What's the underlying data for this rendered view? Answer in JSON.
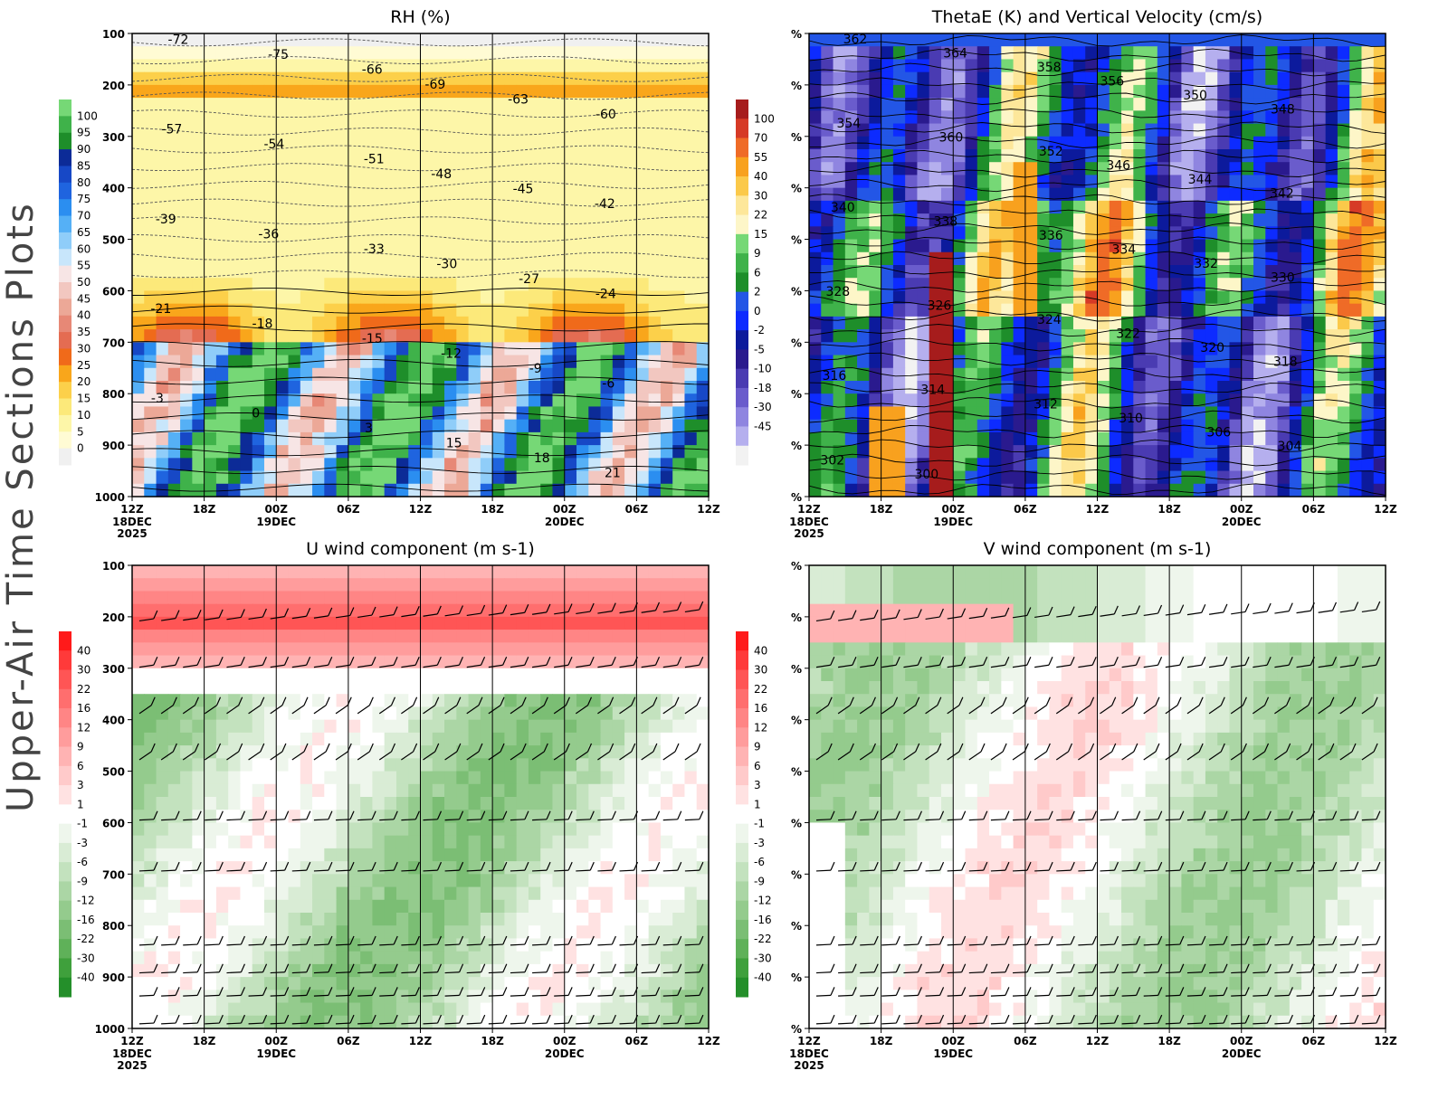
{
  "page": {
    "side_title": "Upper-Air Time Sections Plots"
  },
  "time_axis": {
    "ticks": [
      "12Z",
      "18Z",
      "00Z",
      "06Z",
      "12Z",
      "18Z",
      "00Z",
      "06Z",
      "12Z"
    ],
    "date_labels": [
      {
        "index": 0,
        "lines": [
          "18DEC",
          "2025"
        ]
      },
      {
        "index": 2,
        "lines": [
          "19DEC"
        ]
      },
      {
        "index": 6,
        "lines": [
          "20DEC"
        ]
      }
    ]
  },
  "pressure_levels": [
    "100",
    "200",
    "300",
    "400",
    "500",
    "600",
    "700",
    "800",
    "900",
    "1000"
  ],
  "chart_data": [
    {
      "id": "rh",
      "type": "heatmap",
      "title": "RH (%)",
      "ylabel_ticks": [
        "100",
        "200",
        "300",
        "400",
        "500",
        "600",
        "700",
        "800",
        "900",
        "1000"
      ],
      "y_range": [
        1000,
        100
      ],
      "colorbar": {
        "labels": [
          "100",
          "95",
          "90",
          "85",
          "80",
          "75",
          "70",
          "65",
          "60",
          "55",
          "50",
          "45",
          "40",
          "35",
          "30",
          "25",
          "20",
          "15",
          "10",
          "5",
          "0"
        ],
        "colors": [
          "#76d876",
          "#3fb24a",
          "#1e8e2a",
          "#0c2b97",
          "#1748c6",
          "#1f64df",
          "#2b8ef0",
          "#55b0f6",
          "#8fcdf9",
          "#c8e6fb",
          "#f7e5e5",
          "#f2c7c0",
          "#eca897",
          "#e78876",
          "#e46c52",
          "#f06a1a",
          "#f9a61b",
          "#fcd04a",
          "#fce97a",
          "#fdf6a8",
          "#fffbd4",
          "#f0f0f0"
        ]
      },
      "contour_labels": [
        "-72",
        "-75",
        "-66",
        "-69",
        "-63",
        "-60",
        "-57",
        "-54",
        "-51",
        "-48",
        "-45",
        "-42",
        "-39",
        "-36",
        "-33",
        "-30",
        "-27",
        "-24",
        "-21",
        "-18",
        "-15",
        "-12",
        "-9",
        "-6",
        "-3",
        "0",
        "3",
        "15",
        "18",
        "21"
      ]
    },
    {
      "id": "thetae",
      "type": "heatmap",
      "title": "ThetaE (K) and Vertical Velocity (cm/s)",
      "ylabel_ticks": [
        "%",
        "%",
        "%",
        "%",
        "%",
        "%",
        "%",
        "%",
        "%",
        "%"
      ],
      "colorbar": {
        "labels": [
          "100",
          "70",
          "55",
          "40",
          "30",
          "22",
          "15",
          "9",
          "6",
          "2",
          "0",
          "-2",
          "-5",
          "-10",
          "-18",
          "-30",
          "-45"
        ],
        "colors": [
          "#a61c1c",
          "#d63a26",
          "#ef6b27",
          "#f8a11e",
          "#fbc94a",
          "#fde79a",
          "#fdf6c8",
          "#76d876",
          "#3fb24a",
          "#1e8e2a",
          "#2356e6",
          "#0d2bff",
          "#0c1a9c",
          "#2a1a8e",
          "#4a3bb2",
          "#6a5ccc",
          "#8f85e0",
          "#b5afee",
          "#f2f2f2"
        ]
      },
      "contour_labels": [
        "362",
        "364",
        "358",
        "356",
        "350",
        "348",
        "354",
        "360",
        "352",
        "346",
        "344",
        "342",
        "340",
        "338",
        "336",
        "334",
        "332",
        "330",
        "328",
        "326",
        "324",
        "322",
        "320",
        "318",
        "316",
        "314",
        "312",
        "310",
        "306",
        "304",
        "302",
        "300"
      ]
    },
    {
      "id": "uwind",
      "type": "heatmap",
      "title": "U wind component (m s-1)",
      "ylabel_ticks": [
        "100",
        "200",
        "300",
        "400",
        "500",
        "600",
        "700",
        "800",
        "900",
        "1000"
      ],
      "colorbar": {
        "labels": [
          "40",
          "30",
          "22",
          "16",
          "12",
          "9",
          "6",
          "3",
          "1",
          "-1",
          "-3",
          "-6",
          "-9",
          "-12",
          "-16",
          "-22",
          "-30",
          "-40"
        ],
        "colors": [
          "#ff1a1a",
          "#ff3a3a",
          "#ff5555",
          "#ff6e6e",
          "#ff8585",
          "#ff9c9c",
          "#ffb3b3",
          "#ffcaca",
          "#ffe2e2",
          "#ffffff",
          "#eef6ec",
          "#d9ecd5",
          "#c3e2be",
          "#abd6a5",
          "#94cb8d",
          "#7bbe74",
          "#5fb159",
          "#3fa03c",
          "#248f2a"
        ]
      },
      "barb_levels": [
        "200",
        "300",
        "400",
        "500",
        "600",
        "700",
        "850",
        "900",
        "950",
        "1000"
      ]
    },
    {
      "id": "vwind",
      "type": "heatmap",
      "title": "V wind component (m s-1)",
      "ylabel_ticks": [
        "%",
        "%",
        "%",
        "%",
        "%",
        "%",
        "%",
        "%",
        "%",
        "%"
      ],
      "colorbar": {
        "labels": [
          "40",
          "30",
          "22",
          "16",
          "12",
          "9",
          "6",
          "3",
          "1",
          "-1",
          "-3",
          "-6",
          "-9",
          "-12",
          "-16",
          "-22",
          "-30",
          "-40"
        ],
        "colors": [
          "#ff1a1a",
          "#ff3a3a",
          "#ff5555",
          "#ff6e6e",
          "#ff8585",
          "#ff9c9c",
          "#ffb3b3",
          "#ffcaca",
          "#ffe2e2",
          "#ffffff",
          "#eef6ec",
          "#d9ecd5",
          "#c3e2be",
          "#abd6a5",
          "#94cb8d",
          "#7bbe74",
          "#5fb159",
          "#3fa03c",
          "#248f2a"
        ]
      },
      "barb_levels": [
        "200",
        "300",
        "400",
        "500",
        "600",
        "700",
        "850",
        "900",
        "950",
        "1000"
      ]
    }
  ]
}
